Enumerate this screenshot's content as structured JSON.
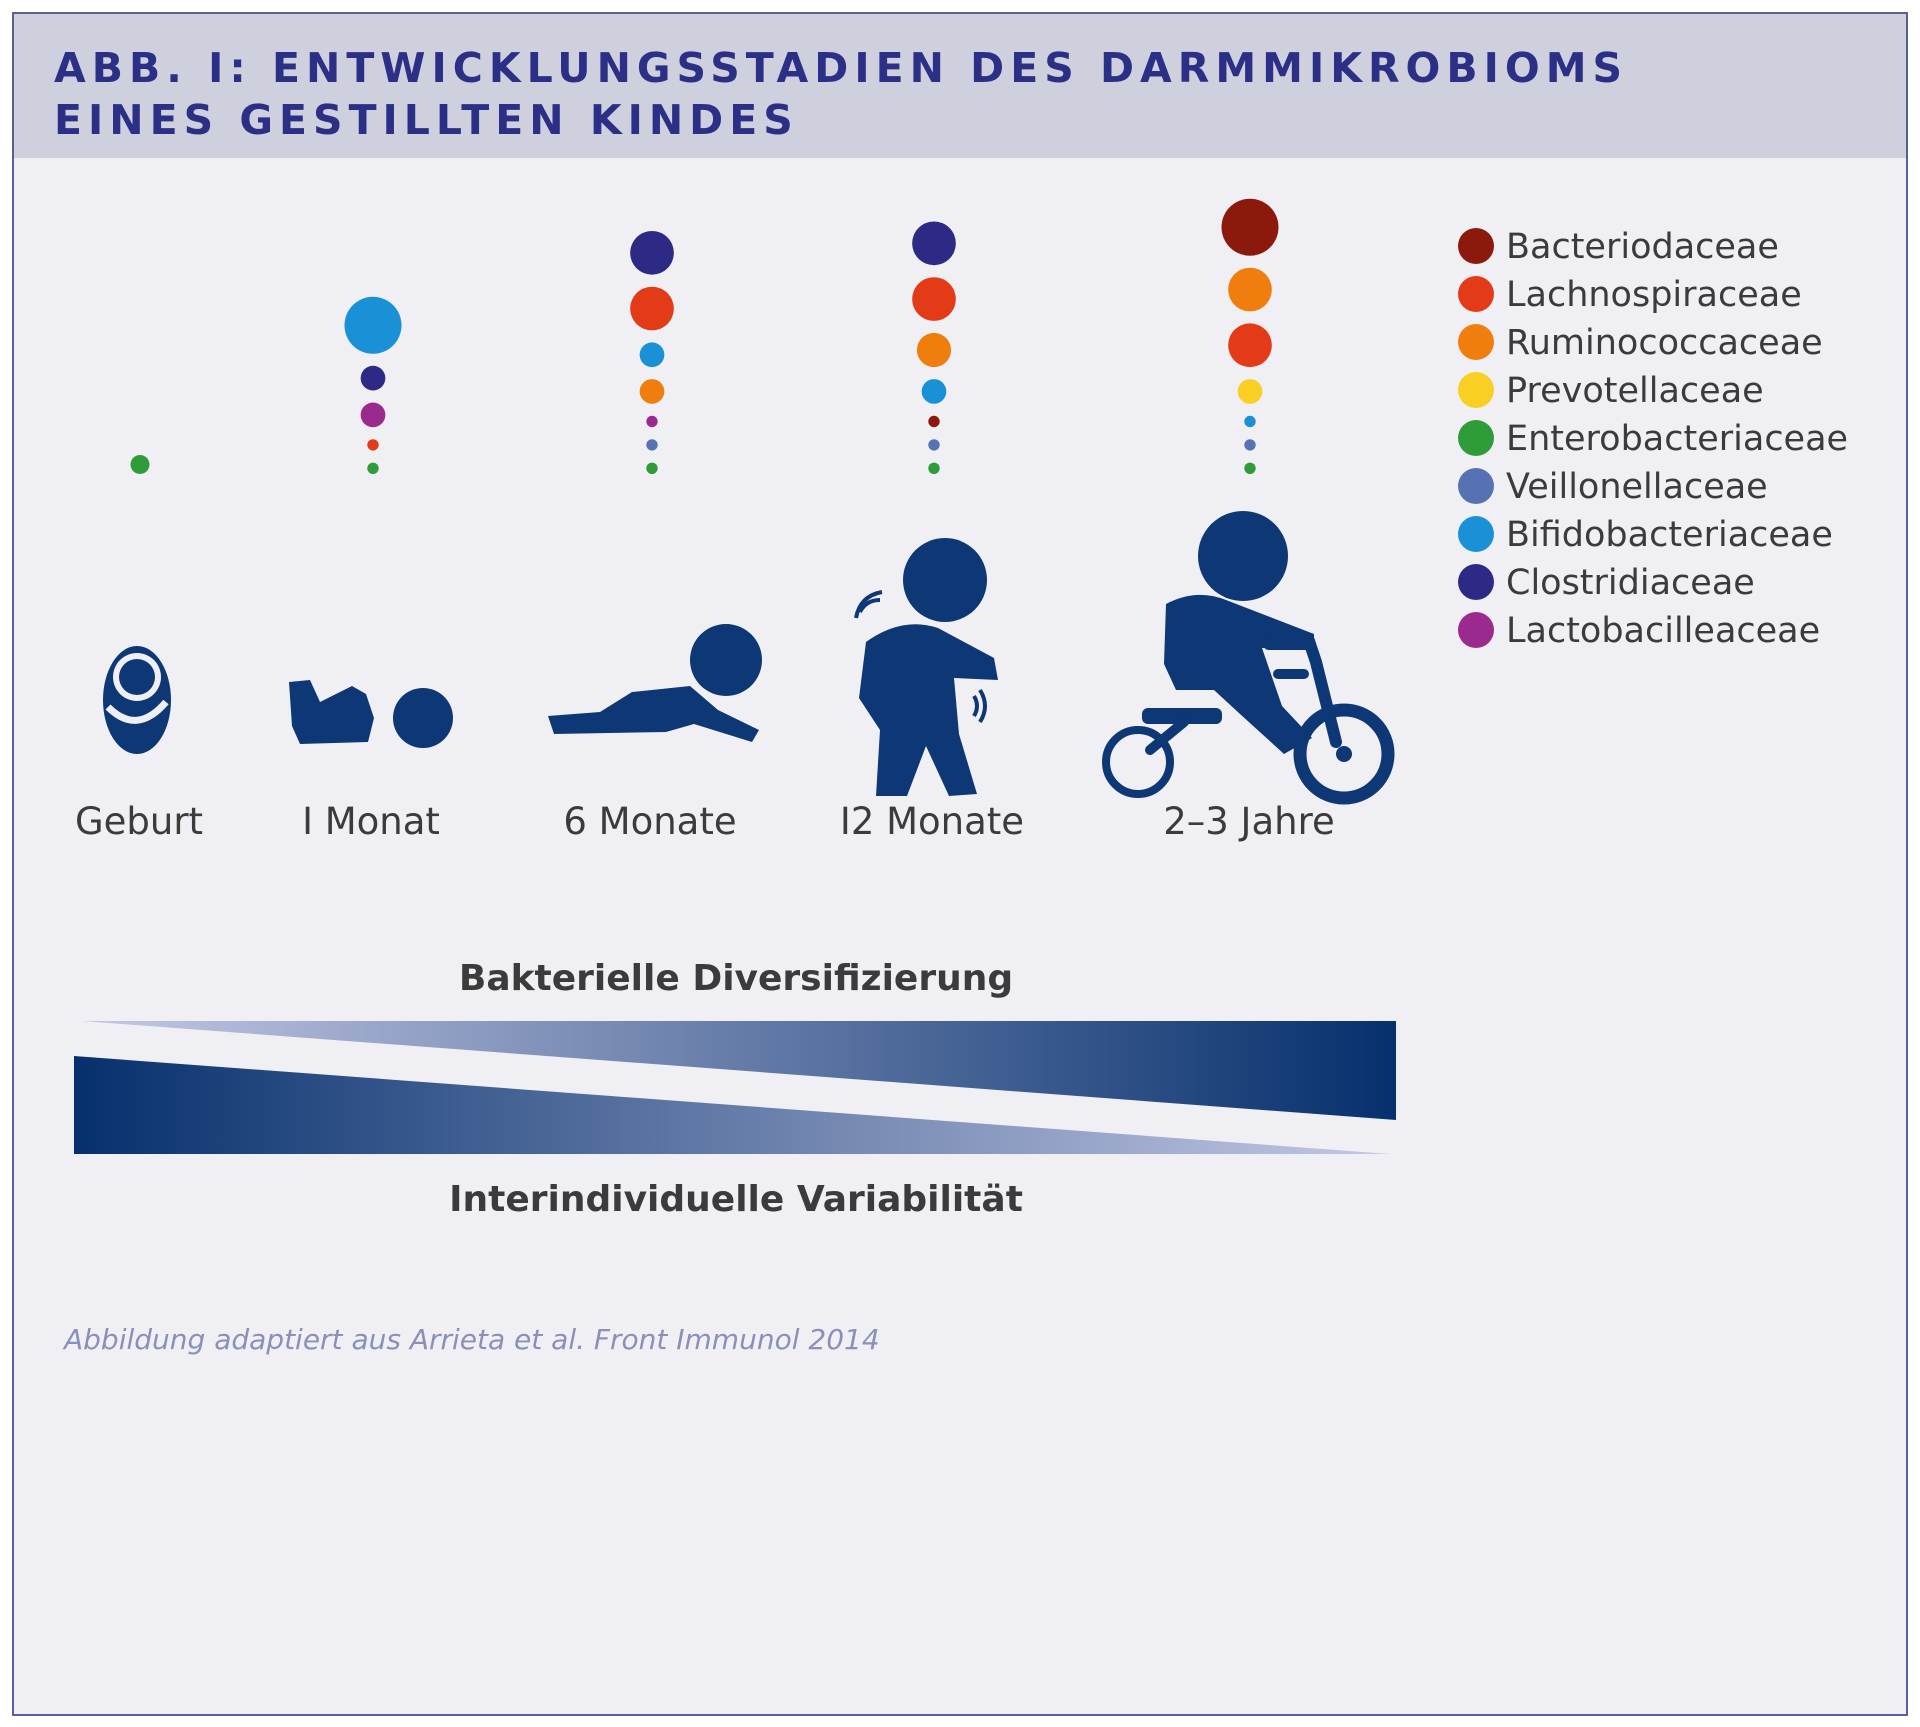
{
  "figure": {
    "title_line1": "ABB. I: ENTWICKLUNGSSTADIEN DES DARMMIKROBIOMS",
    "title_line2": "EINES GESTILLTEN KINDES",
    "source": "Abbildung adaptiert aus Arrieta et al. Front Immunol 2014"
  },
  "legend": [
    {
      "name": "Bacteriodaceae",
      "color": "#8b1a0c"
    },
    {
      "name": "Lachnospiraceae",
      "color": "#e33b18"
    },
    {
      "name": "Ruminococcaceae",
      "color": "#ef7e0e"
    },
    {
      "name": "Prevotellaceae",
      "color": "#f8cf22"
    },
    {
      "name": "Enterobacteriaceae",
      "color": "#2f9c3a"
    },
    {
      "name": "Veillonellaceae",
      "color": "#5672b3"
    },
    {
      "name": "Bifidobacteriaceae",
      "color": "#1a91d6"
    },
    {
      "name": "Clostridiaceae",
      "color": "#2d2a86"
    },
    {
      "name": "Lactobacilleaceae",
      "color": "#9a2a8d"
    }
  ],
  "stages": [
    {
      "label": "Geburt",
      "icon": "newborn-icon",
      "bubbles": [
        {
          "family": "Enterobacteriaceae",
          "size": 1.0
        }
      ]
    },
    {
      "label": "I Monat",
      "icon": "baby-lying-icon",
      "bubbles": [
        {
          "family": "Bifidobacteriaceae",
          "size": 3.0
        },
        {
          "family": "Clostridiaceae",
          "size": 1.3
        },
        {
          "family": "Lactobacilleaceae",
          "size": 1.3
        },
        {
          "family": "Lachnospiraceae",
          "size": 0.6
        },
        {
          "family": "Enterobacteriaceae",
          "size": 0.6
        }
      ]
    },
    {
      "label": "6 Monate",
      "icon": "baby-crawling-icon",
      "bubbles": [
        {
          "family": "Clostridiaceae",
          "size": 2.3
        },
        {
          "family": "Lachnospiraceae",
          "size": 2.3
        },
        {
          "family": "Bifidobacteriaceae",
          "size": 1.3
        },
        {
          "family": "Ruminococcaceae",
          "size": 1.3
        },
        {
          "family": "Lactobacilleaceae",
          "size": 0.6
        },
        {
          "family": "Veillonellaceae",
          "size": 0.6
        },
        {
          "family": "Enterobacteriaceae",
          "size": 0.6
        }
      ]
    },
    {
      "label": "I2 Monate",
      "icon": "toddler-walking-icon",
      "bubbles": [
        {
          "family": "Clostridiaceae",
          "size": 2.3
        },
        {
          "family": "Lachnospiraceae",
          "size": 2.3
        },
        {
          "family": "Ruminococcaceae",
          "size": 1.8
        },
        {
          "family": "Bifidobacteriaceae",
          "size": 1.3
        },
        {
          "family": "Bacteriodaceae",
          "size": 0.6
        },
        {
          "family": "Veillonellaceae",
          "size": 0.6
        },
        {
          "family": "Enterobacteriaceae",
          "size": 0.6
        }
      ]
    },
    {
      "label": "2–3 Jahre",
      "icon": "child-tricycle-icon",
      "bubbles": [
        {
          "family": "Bacteriodaceae",
          "size": 3.0
        },
        {
          "family": "Ruminococcaceae",
          "size": 2.3
        },
        {
          "family": "Lachnospiraceae",
          "size": 2.3
        },
        {
          "family": "Prevotellaceae",
          "size": 1.3
        },
        {
          "family": "Bifidobacteriaceae",
          "size": 0.6
        },
        {
          "family": "Veillonellaceae",
          "size": 0.6
        },
        {
          "family": "Enterobacteriaceae",
          "size": 0.6
        }
      ]
    }
  ],
  "bottom": {
    "diversification_label": "Bakterielle Diversifizierung",
    "variability_label": "Interindividuelle Variabilität",
    "wedge_color_dark": "#06306d",
    "wedge_color_light": "#c4c8e4"
  },
  "icon_color": "#0d3775"
}
